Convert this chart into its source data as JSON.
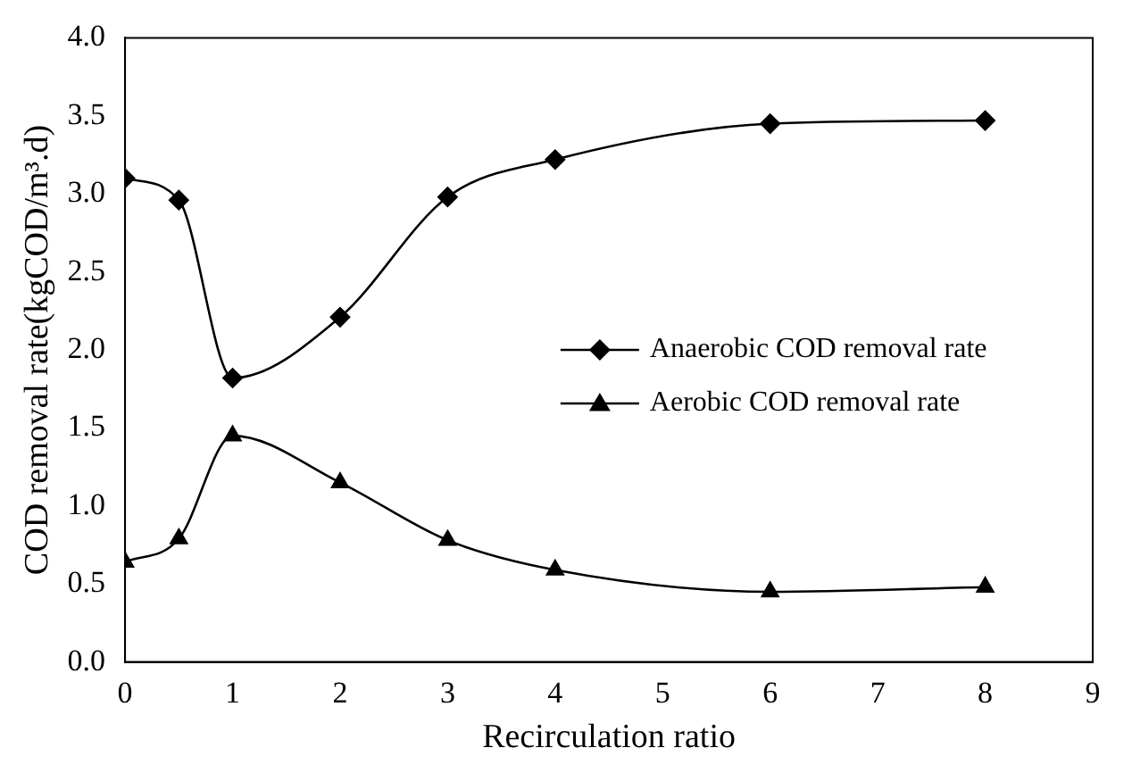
{
  "chart_data": {
    "type": "line",
    "xlabel": "Recirculation ratio",
    "ylabel": "COD removal rate(kgCOD/m³.d)",
    "x": [
      0,
      0.5,
      1,
      2,
      3,
      4,
      6,
      8
    ],
    "series": [
      {
        "name": "Anaerobic COD removal rate",
        "color": "#000000",
        "marker": "diamond",
        "values": [
          3.1,
          2.96,
          1.82,
          2.21,
          2.98,
          3.22,
          3.45,
          3.47
        ]
      },
      {
        "name": "Aerobic COD removal rate",
        "color": "#000000",
        "marker": "triangle",
        "values": [
          0.64,
          0.79,
          1.45,
          1.15,
          0.78,
          0.59,
          0.45,
          0.48
        ]
      }
    ],
    "xlim": [
      0,
      9
    ],
    "xticks": [
      0,
      1,
      2,
      3,
      4,
      5,
      6,
      7,
      8,
      9
    ],
    "ylim": [
      0,
      4
    ],
    "yticks": [
      {
        "value": 0,
        "label": "0.0"
      },
      {
        "value": 0.5,
        "label": "0.5"
      },
      {
        "value": 1,
        "label": "1.0"
      },
      {
        "value": 1.5,
        "label": "1.5"
      },
      {
        "value": 2,
        "label": "2.0"
      },
      {
        "value": 2.5,
        "label": "2.5"
      },
      {
        "value": 3,
        "label": "3.0"
      },
      {
        "value": 3.5,
        "label": "3.5"
      },
      {
        "value": 4,
        "label": "4.0"
      }
    ],
    "grid": false,
    "legend": "right",
    "line_style": "solid"
  }
}
